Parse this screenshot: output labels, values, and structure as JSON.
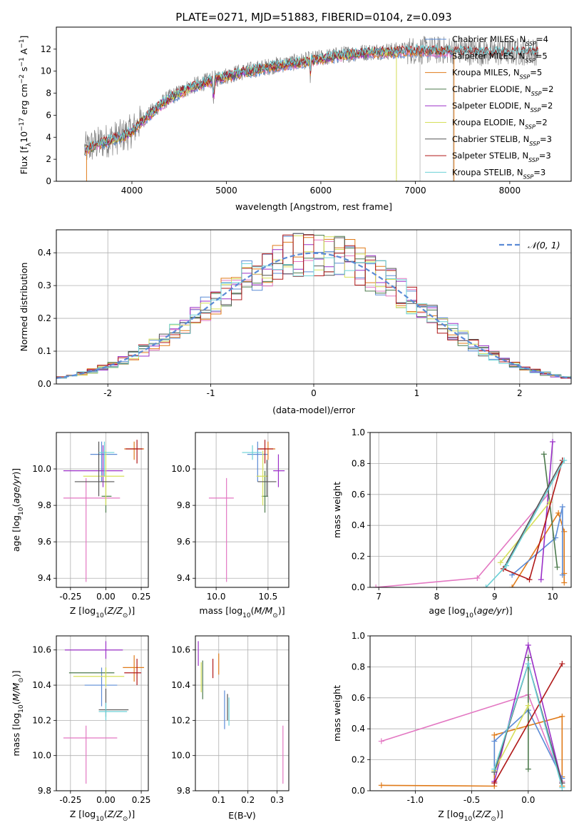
{
  "figure": {
    "title": "PLATE=0271, MJD=51883, FIBERID=0104, z=0.093"
  },
  "colors": {
    "Chabrier MILES": "#5b8bd6",
    "Salpeter MILES": "#e377c2",
    "Kroupa MILES": "#e07b1a",
    "Chabrier ELODIE": "#4c7a4c",
    "Salpeter ELODIE": "#9b30c8",
    "Kroupa ELODIE": "#d6e05a",
    "Chabrier STELIB": "#555555",
    "Salpeter STELIB": "#b01818",
    "Kroupa STELIB": "#6ad0d6",
    "data": "#808080",
    "gauss": "#5b8bd6"
  },
  "chart_data": [
    {
      "type": "line",
      "xlabel": "wavelength [Angstrom, rest frame]",
      "ylabel": "Flux [f_λ10^-17 erg cm^-2 s^-1 A^-1]",
      "xlim": [
        3200,
        8650
      ],
      "ylim": [
        0,
        14
      ],
      "xticks": [
        4000,
        5000,
        6000,
        7000,
        8000
      ],
      "yticks": [
        0,
        2,
        4,
        6,
        8,
        10,
        12
      ],
      "grid": false,
      "legend": "right",
      "series": [
        {
          "name": "Chabrier MILES, N_SSP=4"
        },
        {
          "name": "Salpeter MILES, N_SSP=5"
        },
        {
          "name": "Kroupa MILES, N_SSP=5"
        },
        {
          "name": "Chabrier ELODIE, N_SSP=2"
        },
        {
          "name": "Salpeter ELODIE, N_SSP=2"
        },
        {
          "name": "Kroupa ELODIE, N_SSP=2"
        },
        {
          "name": "Chabrier STELIB, N_SSP=3"
        },
        {
          "name": "Salpeter STELIB, N_SSP=3"
        },
        {
          "name": "Kroupa STELIB, N_SSP=3"
        }
      ],
      "continuum": {
        "x": [
          3500,
          3600,
          3700,
          3800,
          3900,
          4000,
          4100,
          4200,
          4300,
          4400,
          4600,
          4800,
          5000,
          5200,
          5500,
          5800,
          6000,
          6300,
          6600,
          7000,
          7400,
          7800,
          8200
        ],
        "y": [
          2.9,
          3.3,
          3.6,
          3.9,
          4.1,
          4.6,
          5.5,
          6.2,
          7.0,
          7.6,
          8.5,
          9.1,
          9.6,
          10.0,
          10.5,
          10.9,
          11.2,
          11.6,
          11.8,
          11.9,
          11.9,
          11.7,
          11.8
        ]
      }
    },
    {
      "type": "bar",
      "xlabel": "(data-model)/error",
      "ylabel": "Normed distribution",
      "xlim": [
        -2.5,
        2.5
      ],
      "ylim": [
        0,
        0.47
      ],
      "xticks": [
        -2,
        -1,
        0,
        1,
        2
      ],
      "yticks": [
        0.0,
        0.1,
        0.2,
        0.3,
        0.4
      ],
      "grid": true,
      "legend": "top-right",
      "gaussian_label": "𝒩(0, 1)",
      "bin_width": 0.1
    },
    {
      "type": "scatter",
      "xlabel": "Z [log10(Z/Z⊙)]",
      "ylabel": "age [log10(age/yr)]",
      "xlim": [
        -0.35,
        0.3
      ],
      "ylim": [
        9.35,
        10.2
      ],
      "xticks": [
        -0.25,
        0.0,
        0.25
      ],
      "yticks": [
        9.4,
        9.6,
        9.8,
        10.0
      ],
      "grid": true,
      "crosses": [
        {
          "c": "Chabrier MILES",
          "x": -0.03,
          "y": 10.08,
          "ex": [
            -0.11,
            0.08
          ],
          "ey": [
            9.93,
            10.15
          ]
        },
        {
          "c": "Salpeter MILES",
          "x": -0.14,
          "y": 9.84,
          "ex": [
            -0.3,
            0.1
          ],
          "ey": [
            9.38,
            9.95
          ]
        },
        {
          "c": "Kroupa MILES",
          "x": 0.2,
          "y": 10.11,
          "ex": [
            0.13,
            0.27
          ],
          "ey": [
            10.05,
            10.15
          ]
        },
        {
          "c": "Chabrier ELODIE",
          "x": 0.0,
          "y": 9.85,
          "ex": [
            -0.03,
            0.04
          ],
          "ey": [
            9.76,
            9.99
          ]
        },
        {
          "c": "Salpeter ELODIE",
          "x": -0.02,
          "y": 9.99,
          "ex": [
            -0.3,
            0.12
          ],
          "ey": [
            9.9,
            10.13
          ]
        },
        {
          "c": "Kroupa ELODIE",
          "x": 0.0,
          "y": 9.96,
          "ex": [
            -0.16,
            0.13
          ],
          "ey": [
            9.8,
            10.1
          ]
        },
        {
          "c": "Chabrier STELIB",
          "x": -0.05,
          "y": 9.93,
          "ex": [
            -0.22,
            0.06
          ],
          "ey": [
            9.85,
            10.15
          ]
        },
        {
          "c": "Salpeter STELIB",
          "x": 0.22,
          "y": 10.11,
          "ex": [
            0.14,
            0.26
          ],
          "ey": [
            10.03,
            10.16
          ]
        },
        {
          "c": "Kroupa STELIB",
          "x": -0.01,
          "y": 10.09,
          "ex": [
            -0.05,
            0.06
          ],
          "ey": [
            9.96,
            10.15
          ]
        }
      ]
    },
    {
      "type": "scatter",
      "xlabel": "mass [log10(M/M⊙)]",
      "ylabel": "",
      "xlim": [
        9.8,
        10.7
      ],
      "ylim": [
        9.35,
        10.2
      ],
      "xticks": [
        10.0,
        10.5
      ],
      "yticks": [
        9.4,
        9.6,
        9.8,
        10.0
      ],
      "grid": true,
      "crosses": [
        {
          "c": "Chabrier MILES",
          "x": 10.4,
          "y": 10.08,
          "ex": [
            10.3,
            10.5
          ],
          "ey": [
            9.93,
            10.15
          ]
        },
        {
          "c": "Salpeter MILES",
          "x": 10.1,
          "y": 9.84,
          "ex": [
            9.93,
            10.17
          ],
          "ey": [
            9.38,
            9.95
          ]
        },
        {
          "c": "Kroupa MILES",
          "x": 10.5,
          "y": 10.11,
          "ex": [
            10.42,
            10.57
          ],
          "ey": [
            10.05,
            10.15
          ]
        },
        {
          "c": "Chabrier ELODIE",
          "x": 10.47,
          "y": 9.85,
          "ex": [
            10.44,
            10.5
          ],
          "ey": [
            9.76,
            9.99
          ]
        },
        {
          "c": "Salpeter ELODIE",
          "x": 10.6,
          "y": 9.99,
          "ex": [
            10.55,
            10.66
          ],
          "ey": [
            9.9,
            10.08
          ]
        },
        {
          "c": "Kroupa ELODIE",
          "x": 10.45,
          "y": 9.96,
          "ex": [
            10.39,
            10.5
          ],
          "ey": [
            9.8,
            10.1
          ]
        },
        {
          "c": "Chabrier STELIB",
          "x": 10.49,
          "y": 9.93,
          "ex": [
            10.4,
            10.58
          ],
          "ey": [
            9.85,
            10.05
          ]
        },
        {
          "c": "Salpeter STELIB",
          "x": 10.47,
          "y": 10.11,
          "ex": [
            10.4,
            10.55
          ],
          "ey": [
            10.03,
            10.16
          ]
        },
        {
          "c": "Kroupa STELIB",
          "x": 10.35,
          "y": 10.09,
          "ex": [
            10.25,
            10.44
          ],
          "ey": [
            10.05,
            10.13
          ]
        }
      ]
    },
    {
      "type": "line",
      "xlabel": "age [log10(age/yr)]",
      "ylabel": "mass weight",
      "xlim": [
        6.85,
        10.32
      ],
      "ylim": [
        0,
        1
      ],
      "xticks": [
        7,
        8,
        9,
        10
      ],
      "yticks": [
        0.0,
        0.2,
        0.4,
        0.6,
        0.8,
        1.0
      ],
      "grid": true,
      "series": [
        {
          "c": "Salpeter MILES",
          "x": [
            6.95,
            8.7,
            9.92
          ],
          "y": [
            0.0,
            0.06,
            0.6
          ]
        },
        {
          "c": "Kroupa MILES",
          "x": [
            9.3,
            10.1,
            10.2,
            10.2,
            10.2
          ],
          "y": [
            0.0,
            0.48,
            0.36,
            0.09,
            0.03
          ]
        },
        {
          "c": "Chabrier MILES",
          "x": [
            9.3,
            10.05,
            10.17,
            10.17
          ],
          "y": [
            0.08,
            0.32,
            0.52,
            0.08
          ]
        },
        {
          "c": "Salpeter ELODIE",
          "x": [
            9.8,
            10.0
          ],
          "y": [
            0.05,
            0.94
          ]
        },
        {
          "c": "Chabrier ELODIE",
          "x": [
            9.85,
            10.08
          ],
          "y": [
            0.86,
            0.13
          ]
        },
        {
          "c": "Kroupa ELODIE",
          "x": [
            9.1,
            9.95
          ],
          "y": [
            0.16,
            0.55
          ]
        },
        {
          "c": "Chabrier STELIB",
          "x": [
            9.15,
            10.17
          ],
          "y": [
            0.12,
            0.82
          ]
        },
        {
          "c": "Salpeter STELIB",
          "x": [
            9.15,
            9.6,
            10.17
          ],
          "y": [
            0.12,
            0.05,
            0.82
          ]
        },
        {
          "c": "Kroupa STELIB",
          "x": [
            8.85,
            9.2,
            10.2
          ],
          "y": [
            0.0,
            0.14,
            0.82
          ]
        }
      ]
    },
    {
      "type": "scatter",
      "xlabel": "Z [log10(Z/Z⊙)]",
      "ylabel": "mass [log10(M/M⊙)]",
      "xlim": [
        -0.35,
        0.3
      ],
      "ylim": [
        9.8,
        10.68
      ],
      "xticks": [
        -0.25,
        0.0,
        0.25
      ],
      "yticks": [
        9.8,
        10.0,
        10.2,
        10.4,
        10.6
      ],
      "grid": true,
      "crosses": [
        {
          "c": "Chabrier MILES",
          "x": -0.03,
          "y": 10.4,
          "ex": [
            -0.15,
            0.08
          ],
          "ey": [
            10.28,
            10.5
          ]
        },
        {
          "c": "Salpeter MILES",
          "x": -0.14,
          "y": 10.1,
          "ex": [
            -0.3,
            0.08
          ],
          "ey": [
            9.84,
            10.17
          ]
        },
        {
          "c": "Kroupa MILES",
          "x": 0.2,
          "y": 10.5,
          "ex": [
            0.12,
            0.27
          ],
          "ey": [
            10.42,
            10.57
          ]
        },
        {
          "c": "Chabrier ELODIE",
          "x": 0.0,
          "y": 10.47,
          "ex": [
            -0.26,
            0.06
          ],
          "ey": [
            10.44,
            10.5
          ]
        },
        {
          "c": "Salpeter ELODIE",
          "x": 0.0,
          "y": 10.6,
          "ex": [
            -0.29,
            0.12
          ],
          "ey": [
            10.55,
            10.65
          ]
        },
        {
          "c": "Kroupa ELODIE",
          "x": 0.0,
          "y": 10.45,
          "ex": [
            -0.23,
            0.13
          ],
          "ey": [
            10.39,
            10.5
          ]
        },
        {
          "c": "Chabrier STELIB",
          "x": 0.0,
          "y": 10.26,
          "ex": [
            -0.05,
            0.16
          ],
          "ey": [
            10.22,
            10.38
          ]
        },
        {
          "c": "Salpeter STELIB",
          "x": 0.22,
          "y": 10.47,
          "ex": [
            0.13,
            0.25
          ],
          "ey": [
            10.4,
            10.55
          ]
        },
        {
          "c": "Kroupa STELIB",
          "x": 0.0,
          "y": 10.25,
          "ex": [
            -0.05,
            0.15
          ],
          "ey": [
            10.2,
            10.3
          ]
        }
      ]
    },
    {
      "type": "scatter",
      "xlabel": "E(B-V)",
      "ylabel": "",
      "xlim": [
        0.02,
        0.34
      ],
      "ylim": [
        9.8,
        10.68
      ],
      "xticks": [
        0.1,
        0.2,
        0.3
      ],
      "yticks": [
        9.8,
        10.0,
        10.2,
        10.4,
        10.6
      ],
      "grid": true,
      "crosses": [
        {
          "c": "Chabrier MILES",
          "x": 0.12,
          "y": 10.26,
          "ex": [
            0.12,
            0.12
          ],
          "ey": [
            10.15,
            10.37
          ]
        },
        {
          "c": "Salpeter MILES",
          "x": 0.32,
          "y": 10.0,
          "ex": [
            0.32,
            0.32
          ],
          "ey": [
            9.84,
            10.17
          ]
        },
        {
          "c": "Kroupa MILES",
          "x": 0.1,
          "y": 10.52,
          "ex": [
            0.1,
            0.1
          ],
          "ey": [
            10.46,
            10.58
          ]
        },
        {
          "c": "Chabrier ELODIE",
          "x": 0.045,
          "y": 10.45,
          "ex": [
            0.045,
            0.045
          ],
          "ey": [
            10.32,
            10.54
          ]
        },
        {
          "c": "Salpeter ELODIE",
          "x": 0.03,
          "y": 10.58,
          "ex": [
            0.03,
            0.03
          ],
          "ey": [
            10.51,
            10.65
          ]
        },
        {
          "c": "Kroupa ELODIE",
          "x": 0.04,
          "y": 10.45,
          "ex": [
            0.04,
            0.04
          ],
          "ey": [
            10.36,
            10.53
          ]
        },
        {
          "c": "Chabrier STELIB",
          "x": 0.13,
          "y": 10.26,
          "ex": [
            0.13,
            0.13
          ],
          "ey": [
            10.2,
            10.35
          ]
        },
        {
          "c": "Salpeter STELIB",
          "x": 0.08,
          "y": 10.5,
          "ex": [
            0.08,
            0.08
          ],
          "ey": [
            10.44,
            10.55
          ]
        },
        {
          "c": "Kroupa STELIB",
          "x": 0.135,
          "y": 10.25,
          "ex": [
            0.135,
            0.135
          ],
          "ey": [
            10.17,
            10.33
          ]
        }
      ]
    },
    {
      "type": "line",
      "xlabel": "Z [log10(Z/Z⊙)]",
      "ylabel": "mass weight",
      "xlim": [
        -1.4,
        0.38
      ],
      "ylim": [
        0,
        1
      ],
      "xticks": [
        -1.0,
        -0.5,
        0.0
      ],
      "yticks": [
        0.0,
        0.2,
        0.4,
        0.6,
        0.8,
        1.0
      ],
      "grid": true,
      "series": [
        {
          "c": "Salpeter MILES",
          "x": [
            -1.3,
            0.0,
            0.3
          ],
          "y": [
            0.32,
            0.62,
            0.06
          ]
        },
        {
          "c": "Kroupa MILES",
          "x": [
            -1.3,
            -0.3,
            -0.3,
            0.3,
            0.3,
            0.3
          ],
          "y": [
            0.035,
            0.03,
            0.36,
            0.48,
            0.09,
            0.03
          ]
        },
        {
          "c": "Chabrier MILES",
          "x": [
            -0.3,
            -0.3,
            0.0,
            0.3
          ],
          "y": [
            0.12,
            0.32,
            0.52,
            0.08
          ]
        },
        {
          "c": "Salpeter ELODIE",
          "x": [
            -0.3,
            0.0,
            0.3
          ],
          "y": [
            0.06,
            0.94,
            0.05
          ]
        },
        {
          "c": "Chabrier ELODIE",
          "x": [
            0.0,
            0.0
          ],
          "y": [
            0.86,
            0.14
          ]
        },
        {
          "c": "Kroupa ELODIE",
          "x": [
            -0.3,
            0.0
          ],
          "y": [
            0.13,
            0.55
          ]
        },
        {
          "c": "Chabrier STELIB",
          "x": [
            -0.3,
            0.0,
            0.3
          ],
          "y": [
            0.12,
            0.82,
            0.05
          ]
        },
        {
          "c": "Salpeter STELIB",
          "x": [
            -0.3,
            0.3
          ],
          "y": [
            0.05,
            0.82
          ]
        },
        {
          "c": "Kroupa STELIB",
          "x": [
            -0.3,
            0.0,
            0.3
          ],
          "y": [
            0.14,
            0.82,
            0.02
          ]
        }
      ]
    }
  ]
}
